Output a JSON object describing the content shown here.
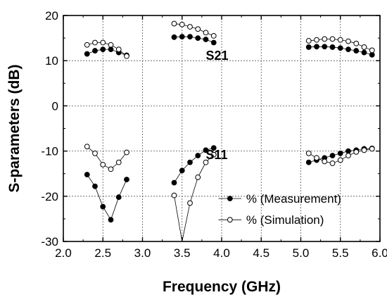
{
  "chart_data": {
    "type": "scatter",
    "xlabel": "Frequency (GHz)",
    "ylabel": "S-parameters (dB)",
    "xlim": [
      2.0,
      6.0
    ],
    "ylim": [
      -30,
      20
    ],
    "xticks": [
      "2.0",
      "2.5",
      "3.0",
      "3.5",
      "4.0",
      "4.5",
      "5.0",
      "5.5",
      "6.0"
    ],
    "yticks": [
      "-30",
      "-20",
      "-10",
      "0",
      "10",
      "20"
    ],
    "grid": true,
    "annotations": [
      "S21",
      "S11"
    ],
    "legend": {
      "placement": "bottom-right",
      "entries": [
        "% (Measurement)",
        "% (Simulation)"
      ]
    },
    "series": [
      {
        "name": "% (Measurement)",
        "marker": "filled",
        "segments": [
          {
            "x": [
              2.3,
              2.4,
              2.5,
              2.6,
              2.7,
              2.8
            ],
            "y": [
              11.5,
              12.2,
              12.5,
              12.5,
              11.8,
              11.2
            ]
          },
          {
            "x": [
              3.4,
              3.5,
              3.6,
              3.7,
              3.8,
              3.9
            ],
            "y": [
              15.2,
              15.3,
              15.3,
              15.0,
              14.7,
              14.0
            ]
          },
          {
            "x": [
              5.1,
              5.2,
              5.3,
              5.4,
              5.5,
              5.6,
              5.7,
              5.8,
              5.9
            ],
            "y": [
              13.0,
              13.1,
              13.1,
              13.0,
              12.8,
              12.5,
              12.2,
              11.8,
              11.3
            ]
          },
          {
            "x": [
              2.3,
              2.4,
              2.5,
              2.6,
              2.7,
              2.8
            ],
            "y": [
              -15.2,
              -17.8,
              -22.3,
              -25.2,
              -20.2,
              -16.3
            ]
          },
          {
            "x": [
              3.4,
              3.5,
              3.6,
              3.7,
              3.8,
              3.9
            ],
            "y": [
              -17.0,
              -14.3,
              -12.5,
              -11.0,
              -9.8,
              -9.3
            ]
          },
          {
            "x": [
              5.1,
              5.2,
              5.3,
              5.4,
              5.5,
              5.6,
              5.7,
              5.8,
              5.9
            ],
            "y": [
              -12.5,
              -12.0,
              -11.5,
              -11.0,
              -10.5,
              -10.0,
              -9.8,
              -9.5,
              -9.4
            ]
          }
        ]
      },
      {
        "name": "% (Simulation)",
        "marker": "open",
        "segments": [
          {
            "x": [
              2.3,
              2.4,
              2.5,
              2.6,
              2.7,
              2.8
            ],
            "y": [
              13.5,
              14.0,
              14.0,
              13.5,
              12.5,
              11.0
            ]
          },
          {
            "x": [
              3.4,
              3.5,
              3.6,
              3.7,
              3.8,
              3.9
            ],
            "y": [
              18.2,
              18.0,
              17.5,
              17.0,
              16.2,
              15.5
            ]
          },
          {
            "x": [
              5.1,
              5.2,
              5.3,
              5.4,
              5.5,
              5.6,
              5.7,
              5.8,
              5.9
            ],
            "y": [
              14.4,
              14.6,
              14.8,
              14.8,
              14.6,
              14.3,
              13.8,
              13.0,
              12.3
            ]
          },
          {
            "x": [
              2.3,
              2.4,
              2.5,
              2.6,
              2.7,
              2.8
            ],
            "y": [
              -9.0,
              -10.5,
              -13.0,
              -14.0,
              -12.5,
              -10.3
            ]
          },
          {
            "x": [
              3.4,
              3.5,
              3.6,
              3.7,
              3.8,
              3.9
            ],
            "y": [
              -19.8,
              -30.5,
              -21.5,
              -15.8,
              -12.5,
              -10.8
            ]
          },
          {
            "x": [
              5.1,
              5.2,
              5.3,
              5.4,
              5.5,
              5.6,
              5.7,
              5.8,
              5.9
            ],
            "y": [
              -10.5,
              -11.5,
              -12.3,
              -12.7,
              -12.0,
              -11.0,
              -10.2,
              -9.8,
              -9.5
            ]
          }
        ]
      }
    ]
  }
}
